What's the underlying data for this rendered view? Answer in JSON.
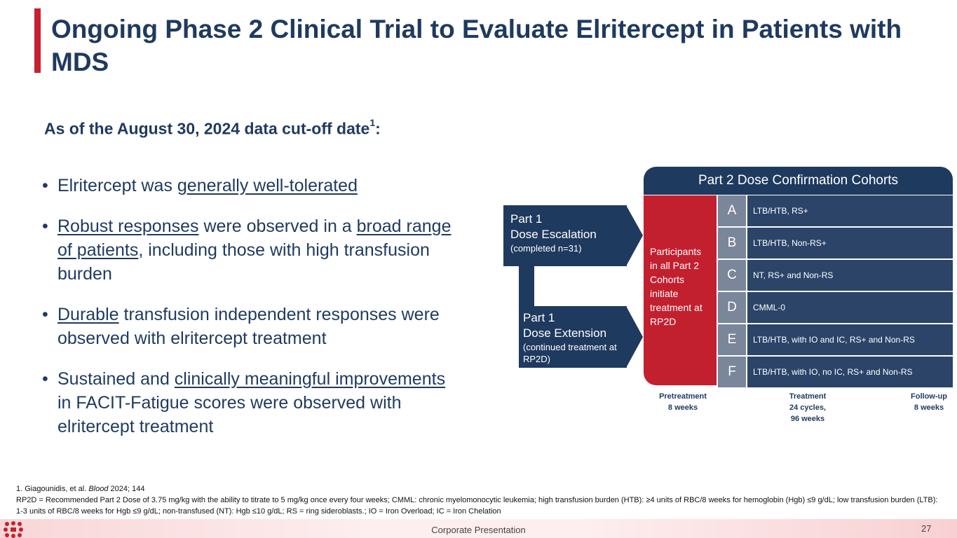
{
  "slide": {
    "title": "Ongoing Phase 2 Clinical Trial to Evaluate Elritercept in Patients with MDS",
    "subtitle": "As of the August 30, 2024 data cut-off date",
    "subtitle_sup": "1",
    "subtitle_suffix": ":"
  },
  "bullets": [
    {
      "parts": [
        {
          "t": "Elritercept was "
        },
        {
          "t": "generally well-tolerated",
          "u": true
        }
      ]
    },
    {
      "parts": [
        {
          "t": "Robust responses",
          "u": true
        },
        {
          "t": " were observed in a "
        },
        {
          "t": "broad range of patients",
          "u": true
        },
        {
          "t": ", including those with high transfusion burden"
        }
      ]
    },
    {
      "parts": [
        {
          "t": "Durable",
          "u": true
        },
        {
          "t": " transfusion independent responses were observed with elritercept treatment"
        }
      ]
    },
    {
      "parts": [
        {
          "t": "Sustained and "
        },
        {
          "t": "clinically meaningful improvements",
          "u": true
        },
        {
          "t": " in FACIT-Fatigue scores were observed with elritercept treatment"
        }
      ]
    }
  ],
  "diagram": {
    "header": "Part 2 Dose Confirmation Cohorts",
    "part1_escalation": {
      "title_l1": "Part 1",
      "title_l2": "Dose Escalation",
      "sub": "(completed n=31)"
    },
    "part1_extension": {
      "title_l1": "Part 1",
      "title_l2": "Dose Extension",
      "sub": "(continued treatment at RP2D)"
    },
    "participants": "Participants in all Part 2 Cohorts initiate treatment at RP2D",
    "cohorts": [
      {
        "letter": "A",
        "desc": "LTB/HTB, RS+"
      },
      {
        "letter": "B",
        "desc": "LTB/HTB, Non-RS+"
      },
      {
        "letter": "C",
        "desc": "NT, RS+ and Non-RS"
      },
      {
        "letter": "D",
        "desc": "CMML-0"
      },
      {
        "letter": "E",
        "desc": "LTB/HTB, with IO and IC, RS+ and Non-RS"
      },
      {
        "letter": "F",
        "desc": "LTB/HTB, with IO, no IC, RS+ and Non-RS"
      }
    ],
    "phases": {
      "pre_l1": "Pretreatment",
      "pre_l2": "8 weeks",
      "tx_l1": "Treatment",
      "tx_l2": "24 cycles,",
      "tx_l3": "96 weeks",
      "fu_l1": "Follow-up",
      "fu_l2": "8 weeks"
    }
  },
  "footnotes": {
    "ref_prefix": "1. Giagounidis, et al. ",
    "ref_journal": "Blood",
    "ref_suffix": " 2024; 144",
    "abbrev": "RP2D = Recommended Part 2 Dose of 3.75 mg/kg with the ability to titrate to 5 mg/kg once every four weeks; CMML: chronic myelomonocytic leukemia; high transfusion burden (HTB): ≥4 units of RBC/8 weeks for hemoglobin (Hgb) ≤9 g/dL; low transfusion burden (LTB): 1-3 units of RBC/8 weeks for Hgb ≤9 g/dL; non-transfused (NT): Hgb ≤10 g/dL; RS = ring sideroblasts.; IO = Iron Overload; IC = Iron Chelation"
  },
  "footer": {
    "label": "Corporate Presentation",
    "page": "27"
  },
  "colors": {
    "navy": "#1f3a5f",
    "red": "#c2202f",
    "grey": "#7a8699"
  },
  "icons": {
    "logo": "company-logo-icon"
  }
}
